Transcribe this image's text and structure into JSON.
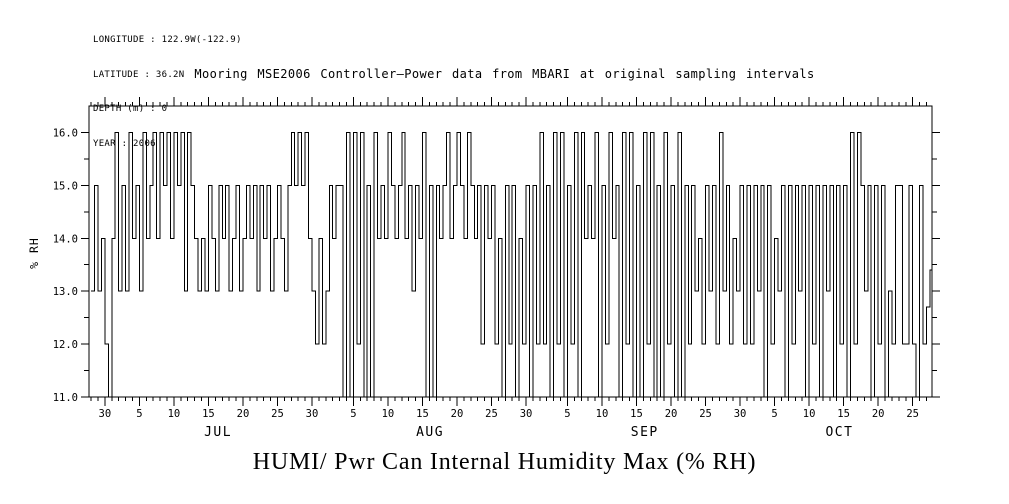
{
  "page": {
    "background": "#ffffff",
    "foreground": "#000000"
  },
  "header_info": {
    "lines": [
      "LONGITUDE : 122.9W(-122.9)",
      "LATITUDE : 36.2N",
      "DEPTH (m) : 0",
      "YEAR : 2006"
    ]
  },
  "caption": "HUMI/ Pwr Can Internal Humidity Max (% RH)",
  "chart_data": {
    "type": "line",
    "style": "step",
    "title": "Mooring MSE2006 Controller–Power data from MBARI at original sampling intervals",
    "ylabel": "% RH",
    "ylim": [
      11.0,
      16.5
    ],
    "grid": false,
    "line_color": "#000000",
    "y_major_ticks": [
      11,
      12,
      13,
      14,
      15,
      16
    ],
    "y_tick_labels": [
      "11.0",
      "12.0",
      "13.0",
      "14.0",
      "15.0",
      "16.0"
    ],
    "y_minor_tick_step": 0.5,
    "x_domain_days": [
      -0.3,
      121.8
    ],
    "x_minor_tick_step_days": 1,
    "x_major_ticks": [
      {
        "day": 2,
        "label": "30"
      },
      {
        "day": 7,
        "label": "5"
      },
      {
        "day": 12,
        "label": "10"
      },
      {
        "day": 17,
        "label": "15"
      },
      {
        "day": 22,
        "label": "20"
      },
      {
        "day": 27,
        "label": "25"
      },
      {
        "day": 32,
        "label": "30"
      },
      {
        "day": 38,
        "label": "5"
      },
      {
        "day": 43,
        "label": "10"
      },
      {
        "day": 48,
        "label": "15"
      },
      {
        "day": 53,
        "label": "20"
      },
      {
        "day": 58,
        "label": "25"
      },
      {
        "day": 63,
        "label": "30"
      },
      {
        "day": 69,
        "label": "5"
      },
      {
        "day": 74,
        "label": "10"
      },
      {
        "day": 79,
        "label": "15"
      },
      {
        "day": 84,
        "label": "20"
      },
      {
        "day": 89,
        "label": "25"
      },
      {
        "day": 94,
        "label": "30"
      },
      {
        "day": 99,
        "label": "5"
      },
      {
        "day": 104,
        "label": "10"
      },
      {
        "day": 109,
        "label": "15"
      },
      {
        "day": 114,
        "label": "20"
      },
      {
        "day": 119,
        "label": "25"
      }
    ],
    "month_labels": [
      {
        "day": 18.4,
        "label": "JUL"
      },
      {
        "day": 49.1,
        "label": "AUG"
      },
      {
        "day": 80.2,
        "label": "SEP"
      },
      {
        "day": 108.4,
        "label": "OCT"
      }
    ],
    "series_name": "HUMI/ Pwr Can Internal Humidity Max (% RH)",
    "sample_interval_days": 0.5,
    "values_percent_rh": [
      13,
      15,
      13,
      14,
      12,
      11,
      14,
      16,
      13,
      15,
      13,
      16,
      14,
      15,
      13,
      16,
      14,
      15,
      16,
      14,
      16,
      15,
      16,
      14,
      16,
      15,
      16,
      13,
      16,
      15,
      14,
      13,
      14,
      13,
      15,
      14,
      13,
      15,
      14,
      15,
      13,
      14,
      15,
      13,
      14,
      15,
      14,
      15,
      13,
      15,
      14,
      15,
      13,
      14,
      15,
      14,
      13,
      15,
      16,
      15,
      16,
      15,
      16,
      14,
      13,
      12,
      14,
      12,
      13,
      15,
      14,
      15,
      15,
      11,
      16,
      11,
      16,
      12,
      16,
      11,
      15,
      11,
      16,
      14,
      15,
      14,
      16,
      15,
      14,
      15,
      16,
      14,
      15,
      13,
      15,
      14,
      16,
      11,
      15,
      11,
      15,
      14,
      15,
      16,
      14,
      15,
      16,
      15,
      14,
      16,
      15,
      14,
      15,
      12,
      15,
      14,
      15,
      12,
      14,
      11,
      15,
      12,
      15,
      11,
      14,
      12,
      15,
      11,
      15,
      12,
      16,
      12,
      15,
      11,
      16,
      12,
      16,
      11,
      15,
      12,
      16,
      11,
      16,
      14,
      15,
      14,
      16,
      11,
      15,
      12,
      16,
      14,
      15,
      11,
      16,
      12,
      16,
      11,
      15,
      11,
      16,
      12,
      16,
      11,
      15,
      11,
      16,
      12,
      15,
      11,
      16,
      11,
      15,
      12,
      15,
      13,
      14,
      12,
      15,
      13,
      15,
      12,
      16,
      13,
      15,
      12,
      14,
      13,
      15,
      12,
      15,
      12,
      15,
      13,
      15,
      11,
      15,
      12,
      14,
      13,
      15,
      11,
      15,
      12,
      15,
      13,
      15,
      11,
      15,
      12,
      15,
      11,
      15,
      13,
      15,
      11,
      15,
      12,
      15,
      11,
      16,
      12,
      16,
      15,
      13,
      15,
      11,
      15,
      12,
      15,
      11,
      13,
      12,
      15,
      15,
      12,
      12,
      15,
      12,
      11,
      15,
      12,
      12.7,
      13.4,
      14
    ]
  }
}
